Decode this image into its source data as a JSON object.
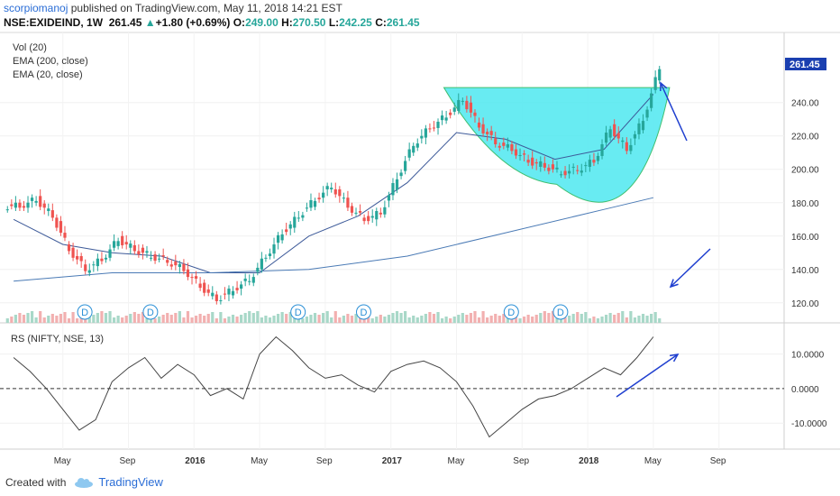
{
  "header": {
    "publisher": "scorpiomanoj",
    "published_text": "published on TradingView.com, May 11, 2018 14:21 EST",
    "symbol": "NSE:EXIDEIND",
    "interval": "1W",
    "last": "261.45",
    "change": "+1.80 (+0.69%)",
    "open_label": "O:",
    "open": "249.00",
    "high_label": "H:",
    "high": "270.50",
    "low_label": "L:",
    "low": "242.25",
    "close_label": "C:",
    "close": "261.45"
  },
  "price_pane": {
    "legend": [
      "Vol (20)",
      "EMA (200, close)",
      "EMA (20, close)"
    ],
    "last_price_label": "261.45"
  },
  "rs_pane": {
    "legend": "RS (NIFTY, NSE, 13)"
  },
  "dividend_marker_text": "D",
  "footer": {
    "created_with": "Created with",
    "brand": "TradingView"
  },
  "colors": {
    "up": "#26a69a",
    "down": "#ef5350",
    "ema_short": "#3d5a99",
    "ema_long": "#4a7ab5",
    "cup_fill": "#4de8f0",
    "annotation": "#1f3fcf",
    "last_price_bg": "#1a3fb0"
  },
  "chart_data": [
    {
      "type": "line",
      "title": "NSE:EXIDEIND weekly price",
      "y_ticks": [
        "120.00",
        "140.00",
        "160.00",
        "180.00",
        "200.00",
        "220.00",
        "240.00"
      ],
      "ylim": [
        108,
        282
      ],
      "x_ticks": [
        "May",
        "Sep",
        "2016",
        "May",
        "Sep",
        "2017",
        "May",
        "Sep",
        "2018",
        "May",
        "Sep"
      ],
      "x_tick_dates": [
        "2015-05",
        "2015-09",
        "2016-01",
        "2016-05",
        "2016-09",
        "2017-01",
        "2017-05",
        "2017-09",
        "2018-01",
        "2018-05",
        "2018-09"
      ],
      "series": [
        {
          "name": "Close",
          "x": [
            "2015-02",
            "2015-03",
            "2015-04",
            "2015-05",
            "2015-06",
            "2015-07",
            "2015-08",
            "2015-09",
            "2015-10",
            "2015-11",
            "2015-12",
            "2016-01",
            "2016-02",
            "2016-03",
            "2016-04",
            "2016-05",
            "2016-06",
            "2016-07",
            "2016-08",
            "2016-09",
            "2016-10",
            "2016-11",
            "2016-12",
            "2017-01",
            "2017-02",
            "2017-03",
            "2017-04",
            "2017-05",
            "2017-06",
            "2017-07",
            "2017-08",
            "2017-09",
            "2017-10",
            "2017-11",
            "2017-12",
            "2018-01",
            "2018-02",
            "2018-03",
            "2018-04",
            "2018-05"
          ],
          "values": [
            178,
            182,
            172,
            152,
            140,
            146,
            158,
            152,
            148,
            145,
            140,
            130,
            122,
            128,
            134,
            148,
            162,
            172,
            182,
            190,
            178,
            170,
            174,
            195,
            215,
            225,
            232,
            242,
            226,
            216,
            212,
            205,
            202,
            198,
            200,
            205,
            225,
            212,
            230,
            261
          ]
        },
        {
          "name": "EMA (20, close)",
          "x": [
            "2015-02",
            "2015-05",
            "2015-08",
            "2015-11",
            "2016-02",
            "2016-05",
            "2016-08",
            "2016-11",
            "2017-02",
            "2017-05",
            "2017-08",
            "2017-11",
            "2018-02",
            "2018-05"
          ],
          "values": [
            170,
            155,
            150,
            148,
            138,
            138,
            160,
            172,
            192,
            222,
            218,
            206,
            212,
            245
          ]
        },
        {
          "name": "EMA (200, close)",
          "x": [
            "2015-02",
            "2015-08",
            "2016-02",
            "2016-08",
            "2017-02",
            "2017-08",
            "2018-02",
            "2018-05"
          ],
          "values": [
            133,
            138,
            138,
            140,
            148,
            162,
            176,
            183
          ]
        }
      ],
      "last_price": 261.45
    },
    {
      "type": "line",
      "title": "RS (NIFTY, NSE, 13)",
      "y_ticks": [
        "-10.0000",
        "0.0000",
        "10.0000"
      ],
      "ylim": [
        -17,
        18
      ],
      "series": [
        {
          "name": "RS",
          "x": [
            "2015-02",
            "2015-03",
            "2015-04",
            "2015-05",
            "2015-06",
            "2015-07",
            "2015-08",
            "2015-09",
            "2015-10",
            "2015-11",
            "2015-12",
            "2016-01",
            "2016-02",
            "2016-03",
            "2016-04",
            "2016-05",
            "2016-06",
            "2016-07",
            "2016-08",
            "2016-09",
            "2016-10",
            "2016-11",
            "2016-12",
            "2017-01",
            "2017-02",
            "2017-03",
            "2017-04",
            "2017-05",
            "2017-06",
            "2017-07",
            "2017-08",
            "2017-09",
            "2017-10",
            "2017-11",
            "2017-12",
            "2018-01",
            "2018-02",
            "2018-03",
            "2018-04",
            "2018-05"
          ],
          "values": [
            9,
            5,
            0,
            -6,
            -12,
            -9,
            2,
            6,
            9,
            3,
            7,
            4,
            -2,
            0,
            -3,
            10,
            15,
            11,
            6,
            3,
            4,
            1,
            -1,
            5,
            7,
            8,
            6,
            2,
            -5,
            -14,
            -10,
            -6,
            -3,
            -2,
            0,
            3,
            6,
            4,
            9,
            15
          ]
        }
      ],
      "reference_line": 0
    }
  ]
}
